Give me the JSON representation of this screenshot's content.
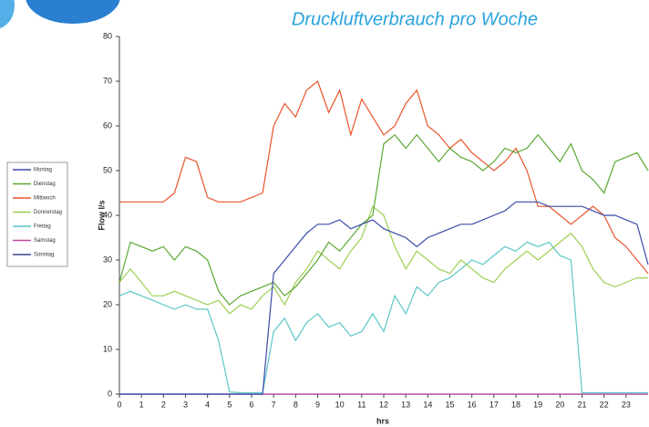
{
  "chart_data": {
    "type": "line",
    "title": "Druckluftverbrauch pro Woche",
    "x_label": "hrs",
    "y_label": "Flow l/s",
    "x": [
      0,
      0.5,
      1,
      1.5,
      2,
      2.5,
      3,
      3.5,
      4,
      4.5,
      5,
      5.5,
      6,
      6.5,
      7,
      7.5,
      8,
      8.5,
      9,
      9.5,
      10,
      10.5,
      11,
      11.5,
      12,
      12.5,
      13,
      13.5,
      14,
      14.5,
      15,
      15.5,
      16,
      16.5,
      17,
      17.5,
      18,
      18.5,
      19,
      19.5,
      20,
      20.5,
      21,
      21.5,
      22,
      22.5,
      23,
      23.5,
      24
    ],
    "xlim": [
      0,
      24
    ],
    "xticks": [
      0,
      1,
      2,
      3,
      4,
      5,
      6,
      7,
      8,
      9,
      10,
      11,
      12,
      13,
      14,
      15,
      16,
      17,
      18,
      19,
      20,
      21,
      22,
      23
    ],
    "ylim": [
      0,
      80
    ],
    "yticks": [
      0,
      10,
      20,
      30,
      40,
      50,
      60,
      70,
      80
    ],
    "legend": "left",
    "series": [
      {
        "name": "Montag",
        "color": "#3b4ba8",
        "values": [
          0,
          0,
          0,
          0,
          0,
          0,
          0,
          0,
          0,
          0,
          0,
          0,
          0,
          0,
          27,
          30,
          33,
          36,
          38,
          38,
          39,
          37,
          38,
          39,
          37,
          36,
          35,
          33,
          35,
          36,
          37,
          38,
          38,
          39,
          40,
          41,
          43,
          43,
          43,
          42,
          42,
          42,
          42,
          41,
          40,
          40,
          39,
          38,
          29
        ]
      },
      {
        "name": "Dienstag",
        "color": "#5aa832",
        "values": [
          25,
          34,
          33,
          32,
          33,
          30,
          33,
          32,
          30,
          23,
          20,
          22,
          23,
          24,
          25,
          22,
          24,
          27,
          30,
          34,
          32,
          35,
          38,
          40,
          56,
          58,
          55,
          58,
          55,
          52,
          55,
          53,
          52,
          50,
          52,
          55,
          54,
          55,
          58,
          55,
          52,
          56,
          50,
          48,
          45,
          52,
          53,
          54,
          50
        ]
      },
      {
        "name": "Mittwoch",
        "color": "#e8552c",
        "values": [
          43,
          43,
          43,
          43,
          43,
          45,
          53,
          52,
          44,
          43,
          43,
          43,
          44,
          45,
          60,
          65,
          62,
          68,
          70,
          63,
          68,
          58,
          66,
          62,
          58,
          60,
          65,
          68,
          60,
          58,
          55,
          57,
          54,
          52,
          50,
          52,
          55,
          50,
          42,
          42,
          40,
          38,
          40,
          42,
          40,
          35,
          33,
          30,
          27
        ]
      },
      {
        "name": "Donnerstag",
        "color": "#9ccf52",
        "values": [
          25,
          28,
          25,
          22,
          22,
          23,
          22,
          21,
          20,
          21,
          18,
          20,
          19,
          22,
          24,
          20,
          25,
          28,
          32,
          30,
          28,
          32,
          35,
          42,
          40,
          33,
          28,
          32,
          30,
          28,
          27,
          30,
          28,
          26,
          25,
          28,
          30,
          32,
          30,
          32,
          34,
          36,
          33,
          28,
          25,
          24,
          25,
          26,
          26
        ]
      },
      {
        "name": "Freitag",
        "color": "#5cc6c8",
        "values": [
          22,
          23,
          22,
          21,
          20,
          19,
          20,
          19,
          19,
          12,
          0.5,
          0.3,
          0.3,
          0.3,
          14,
          17,
          12,
          16,
          18,
          15,
          16,
          13,
          14,
          18,
          14,
          22,
          18,
          24,
          22,
          25,
          26,
          28,
          30,
          29,
          31,
          33,
          32,
          34,
          33,
          34,
          31,
          30,
          0.3,
          0.3,
          0.3,
          0.3,
          0.3,
          0.3,
          0.3
        ]
      },
      {
        "name": "Samstag",
        "color": "#c04aa0",
        "values": [
          0,
          0,
          0,
          0,
          0,
          0,
          0,
          0,
          0,
          0,
          0,
          0,
          0,
          0,
          0,
          0,
          0,
          0,
          0,
          0,
          0,
          0,
          0,
          0,
          0,
          0,
          0,
          0,
          0,
          0,
          0,
          0,
          0,
          0,
          0,
          0,
          0,
          0,
          0,
          0,
          0,
          0,
          0,
          0,
          0,
          0,
          0,
          0,
          0
        ]
      },
      {
        "name": "Sonntag",
        "color": "#3a4a90",
        "values": [
          0,
          0,
          0,
          0,
          0,
          0,
          0,
          0,
          0,
          0,
          0,
          0,
          0,
          0,
          0,
          0,
          0,
          0,
          0,
          0,
          0,
          0,
          0,
          0,
          0,
          0,
          0,
          0,
          0,
          0,
          0,
          0,
          0,
          0,
          0,
          0,
          0,
          0,
          0,
          0,
          0,
          0,
          0,
          0,
          0,
          0,
          0,
          0,
          0
        ]
      }
    ]
  }
}
